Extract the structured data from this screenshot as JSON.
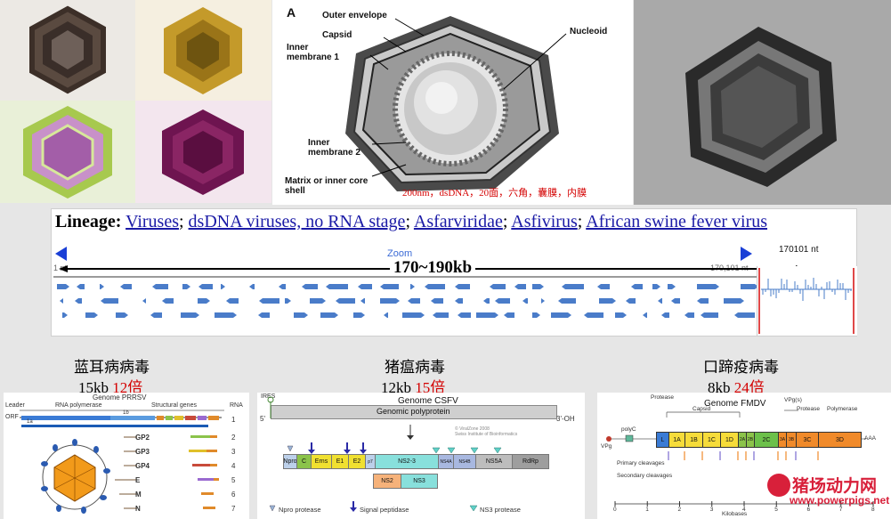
{
  "panelA": {
    "letter": "A",
    "labels": {
      "outer_envelope": "Outer envelope",
      "capsid": "Capsid",
      "inner_membrane_1": "Inner membrane 1",
      "nucleoid": "Nucleoid",
      "inner_membrane_2": "Inner membrane 2",
      "matrix": "Matrix or inner core shell"
    },
    "caption": "200nm，dsDNA，20面，六角，囊膜，内膜"
  },
  "lineage": {
    "label": "Lineage:",
    "items": [
      "Viruses",
      "dsDNA viruses, no RNA stage",
      "Asfarviridae",
      "Asfivirus",
      "African swine fever virus"
    ]
  },
  "genome_browser": {
    "zoom_label": "Zoom",
    "total_nt": "170101 nt",
    "start_label": "1 nt",
    "end_label": "170,101 nt",
    "size_label": "170~190kb"
  },
  "comparisons": [
    {
      "name": "蓝耳病病毒",
      "size": "15kb",
      "ratio": "12倍"
    },
    {
      "name": "猪瘟病毒",
      "size": "12kb",
      "ratio": "15倍"
    },
    {
      "name": "口蹄疫病毒",
      "size": "8kb",
      "ratio": "24倍"
    }
  ],
  "prrsv": {
    "title": "Genome PRRSV",
    "leader": "Leader",
    "rna_polymerase": "RNA polymerase",
    "structural_genes": "Structural genes",
    "rna": "RNA",
    "orf": "ORF",
    "orf1a": "1a",
    "orf1b": "1b",
    "proteins": [
      "GP2",
      "GP3",
      "GP4",
      "E",
      "M",
      "N"
    ],
    "rna_numbers": [
      "1",
      "2",
      "3",
      "4",
      "5",
      "6",
      "7"
    ]
  },
  "csfv": {
    "ires": "IRES",
    "five_prime": "5'",
    "title": "Genome CSFV",
    "polyprotein": "Genomic polyprotein",
    "three_prime": "3'-OH",
    "copyright": "© ViralZone 2008",
    "copyright_sub": "Swiss Institute of Bioinformatics",
    "segments": [
      "Npro",
      "C",
      "Erns",
      "E1",
      "E2",
      "p7",
      "NS2-3",
      "NS4A",
      "NS4B",
      "NS5A",
      "RdRp"
    ],
    "segments2": [
      "NS2",
      "NS3"
    ],
    "legend": [
      "Npro protease",
      "Signal peptidase",
      "NS3 protease"
    ]
  },
  "fmdv": {
    "title": "Genome FMDV",
    "protease": "Protease",
    "capsid": "Capsid",
    "vpg_label": "VPg(s)",
    "protease2": "Protease",
    "polymerase": "Polymerase",
    "polyc": "polyC",
    "vpg": "VPg",
    "aaa": "AAA",
    "segments": [
      "L",
      "1A",
      "1B",
      "1C",
      "1D",
      "2A",
      "2B",
      "2C",
      "3A",
      "3B",
      "3C",
      "3D"
    ],
    "primary": "Primary cleavages",
    "secondary": "Secondary cleavages",
    "axis_ticks": [
      "0",
      "1",
      "2",
      "3",
      "4",
      "5",
      "6",
      "7",
      "8"
    ],
    "axis_label": "Kilobases"
  },
  "watermark": {
    "name": "猪场动力网",
    "url": "www.powerpigs.net"
  }
}
